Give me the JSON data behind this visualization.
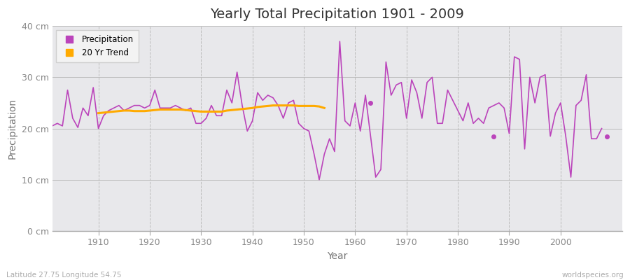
{
  "title": "Yearly Total Precipitation 1901 - 2009",
  "xlabel": "Year",
  "ylabel": "Precipitation",
  "subtitle": "Latitude 27.75 Longitude 54.75",
  "watermark": "worldspecies.org",
  "fig_bg_color": "#ffffff",
  "plot_bg_color": "#e8e8eb",
  "precip_color": "#bb44bb",
  "trend_color": "#ffaa00",
  "ylim": [
    0,
    40
  ],
  "ytick_labels": [
    "0 cm",
    "10 cm",
    "20 cm",
    "30 cm",
    "40 cm"
  ],
  "ytick_values": [
    0,
    10,
    20,
    30,
    40
  ],
  "years": [
    1901,
    1902,
    1903,
    1904,
    1905,
    1906,
    1907,
    1908,
    1909,
    1910,
    1911,
    1912,
    1913,
    1914,
    1915,
    1916,
    1917,
    1918,
    1919,
    1920,
    1921,
    1922,
    1923,
    1924,
    1925,
    1926,
    1927,
    1928,
    1929,
    1930,
    1931,
    1932,
    1933,
    1934,
    1935,
    1936,
    1937,
    1938,
    1939,
    1940,
    1941,
    1942,
    1943,
    1944,
    1945,
    1946,
    1947,
    1948,
    1949,
    1950,
    1951,
    1952,
    1953,
    1954,
    1955,
    1956,
    1957,
    1958,
    1959,
    1960,
    1961,
    1962,
    1964,
    1965,
    1966,
    1967,
    1968,
    1969,
    1970,
    1971,
    1972,
    1973,
    1974,
    1975,
    1976,
    1977,
    1978,
    1979,
    1980,
    1981,
    1982,
    1983,
    1984,
    1985,
    1986,
    1988,
    1989,
    1990,
    1991,
    1992,
    1993,
    1994,
    1995,
    1996,
    1997,
    1998,
    1999,
    2000,
    2001,
    2002,
    2003,
    2004,
    2005,
    2006,
    2007,
    2008
  ],
  "precip": [
    20.5,
    21.0,
    20.5,
    27.5,
    22.0,
    20.2,
    24.0,
    22.5,
    28.0,
    20.0,
    22.5,
    23.5,
    24.0,
    24.5,
    23.5,
    24.0,
    24.5,
    24.5,
    24.0,
    24.5,
    27.5,
    24.0,
    24.0,
    24.0,
    24.5,
    24.0,
    23.5,
    24.0,
    21.0,
    21.0,
    22.0,
    24.5,
    22.5,
    22.5,
    27.5,
    25.0,
    31.0,
    24.5,
    19.5,
    21.5,
    27.0,
    25.5,
    26.5,
    26.0,
    24.5,
    22.0,
    25.0,
    25.5,
    21.0,
    20.0,
    19.5,
    15.0,
    10.0,
    15.0,
    18.0,
    15.5,
    37.0,
    21.5,
    20.5,
    25.0,
    19.5,
    26.5,
    10.5,
    12.0,
    33.0,
    26.5,
    28.5,
    29.0,
    22.0,
    29.5,
    27.0,
    22.0,
    29.0,
    30.0,
    21.0,
    21.0,
    27.5,
    25.5,
    23.5,
    21.5,
    25.0,
    21.0,
    22.0,
    21.0,
    24.0,
    25.0,
    24.0,
    19.0,
    34.0,
    33.5,
    16.0,
    30.0,
    25.0,
    30.0,
    30.5,
    18.5,
    23.0,
    25.0,
    18.5,
    10.5,
    24.5,
    25.5,
    30.5,
    18.0,
    18.0,
    20.0
  ],
  "isolated_dots": [
    {
      "year": 1963,
      "value": 25.0
    },
    {
      "year": 1987,
      "value": 18.5
    },
    {
      "year": 2009,
      "value": 18.5
    }
  ],
  "trend_years": [
    1910,
    1911,
    1912,
    1913,
    1914,
    1915,
    1916,
    1917,
    1918,
    1919,
    1920,
    1921,
    1922,
    1923,
    1924,
    1925,
    1926,
    1927,
    1928,
    1929,
    1930,
    1931,
    1932,
    1933,
    1934,
    1935,
    1936,
    1937,
    1938,
    1939,
    1940,
    1941,
    1942,
    1943,
    1944,
    1945,
    1946,
    1947,
    1948,
    1949,
    1950,
    1951,
    1952,
    1953,
    1954
  ],
  "trend_values": [
    23.0,
    23.1,
    23.2,
    23.3,
    23.4,
    23.5,
    23.5,
    23.4,
    23.4,
    23.4,
    23.5,
    23.6,
    23.7,
    23.7,
    23.7,
    23.7,
    23.7,
    23.6,
    23.5,
    23.4,
    23.3,
    23.3,
    23.3,
    23.3,
    23.3,
    23.5,
    23.6,
    23.7,
    23.8,
    23.9,
    24.0,
    24.2,
    24.3,
    24.4,
    24.5,
    24.5,
    24.5,
    24.5,
    24.5,
    24.4,
    24.4,
    24.4,
    24.4,
    24.3,
    24.0
  ],
  "xlim": [
    1901,
    2012
  ],
  "xticks": [
    1910,
    1920,
    1930,
    1940,
    1950,
    1960,
    1970,
    1980,
    1990,
    2000
  ]
}
